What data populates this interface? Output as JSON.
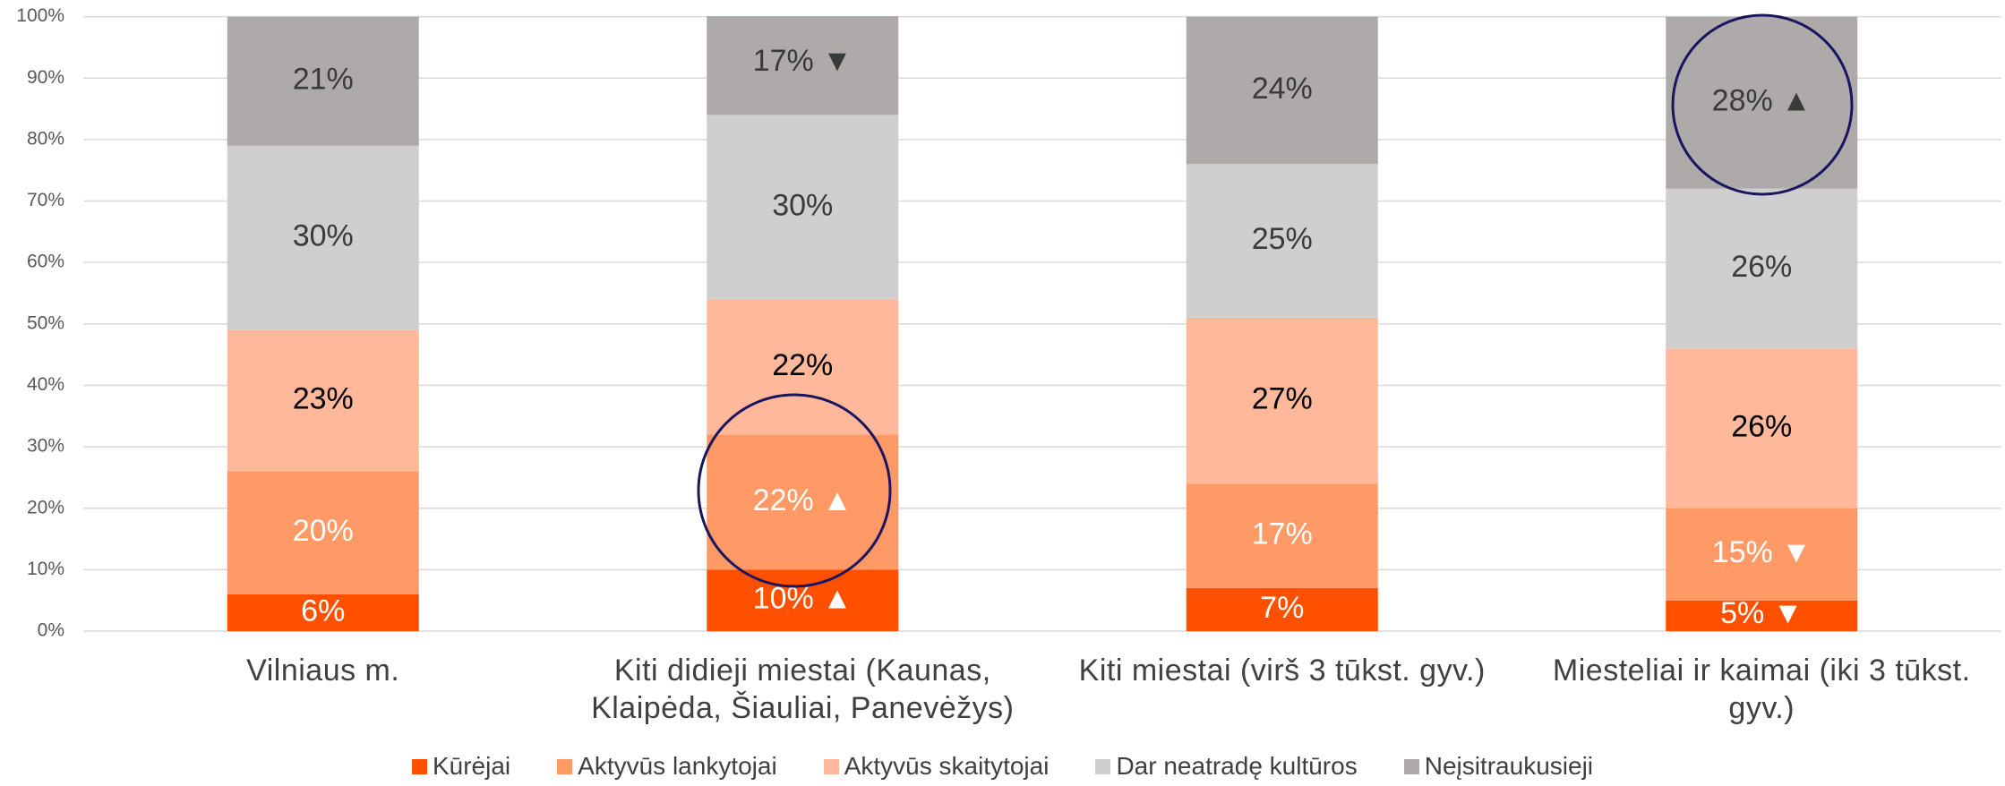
{
  "chart_data": {
    "type": "stacked_bar",
    "categories": [
      "Vilniaus m.",
      "Kiti didieji miestai (Kaunas, Klaipėda, Šiauliai, Panevėžys)",
      "Kiti miestai (virš 3 tūkst. gyv.)",
      "Miesteliai ir kaimai (iki 3 tūkst. gyv.)"
    ],
    "series": [
      {
        "name": "Kūrėjai",
        "color": "#ff5000",
        "label_color": "#ffffff",
        "values": [
          6,
          10,
          7,
          5
        ],
        "value_labels": [
          "6%",
          "10% ▲",
          "7%",
          "5% ▼"
        ]
      },
      {
        "name": "Aktyvūs lankytojai",
        "color": "#ff9966",
        "label_color": "#ffffff",
        "values": [
          20,
          22,
          17,
          15
        ],
        "value_labels": [
          "20%",
          "22% ▲",
          "17%",
          "15% ▼"
        ]
      },
      {
        "name": "Aktyvūs skaitytojai",
        "color": "#ffb899",
        "label_color": "#000000",
        "values": [
          23,
          22,
          27,
          26
        ],
        "value_labels": [
          "23%",
          "22%",
          "27%",
          "26%"
        ]
      },
      {
        "name": "Dar neatradę kultūros",
        "color": "#d0cfcf",
        "label_color": "#3a3a3a",
        "values": [
          30,
          30,
          25,
          26
        ],
        "value_labels": [
          "30%",
          "30%",
          "25%",
          "26%"
        ]
      },
      {
        "name": "Neįsitraukusieji",
        "color": "#aeaaaa",
        "label_color": "#3a3a3a",
        "values": [
          21,
          17,
          24,
          28
        ],
        "value_labels": [
          "21%",
          "17% ▼",
          "24%",
          "28% ▲"
        ]
      }
    ],
    "ylim": [
      0,
      100
    ],
    "yticks": [
      {
        "value": 0,
        "label": "0%"
      },
      {
        "value": 10,
        "label": "10%"
      },
      {
        "value": 20,
        "label": "20%"
      },
      {
        "value": 30,
        "label": "30%"
      },
      {
        "value": 40,
        "label": "40%"
      },
      {
        "value": 50,
        "label": "50%"
      },
      {
        "value": 60,
        "label": "60%"
      },
      {
        "value": 70,
        "label": "70%"
      },
      {
        "value": 80,
        "label": "80%"
      },
      {
        "value": 90,
        "label": "90%"
      },
      {
        "value": 100,
        "label": "100%"
      }
    ],
    "grid": true,
    "legend": "bottom"
  }
}
